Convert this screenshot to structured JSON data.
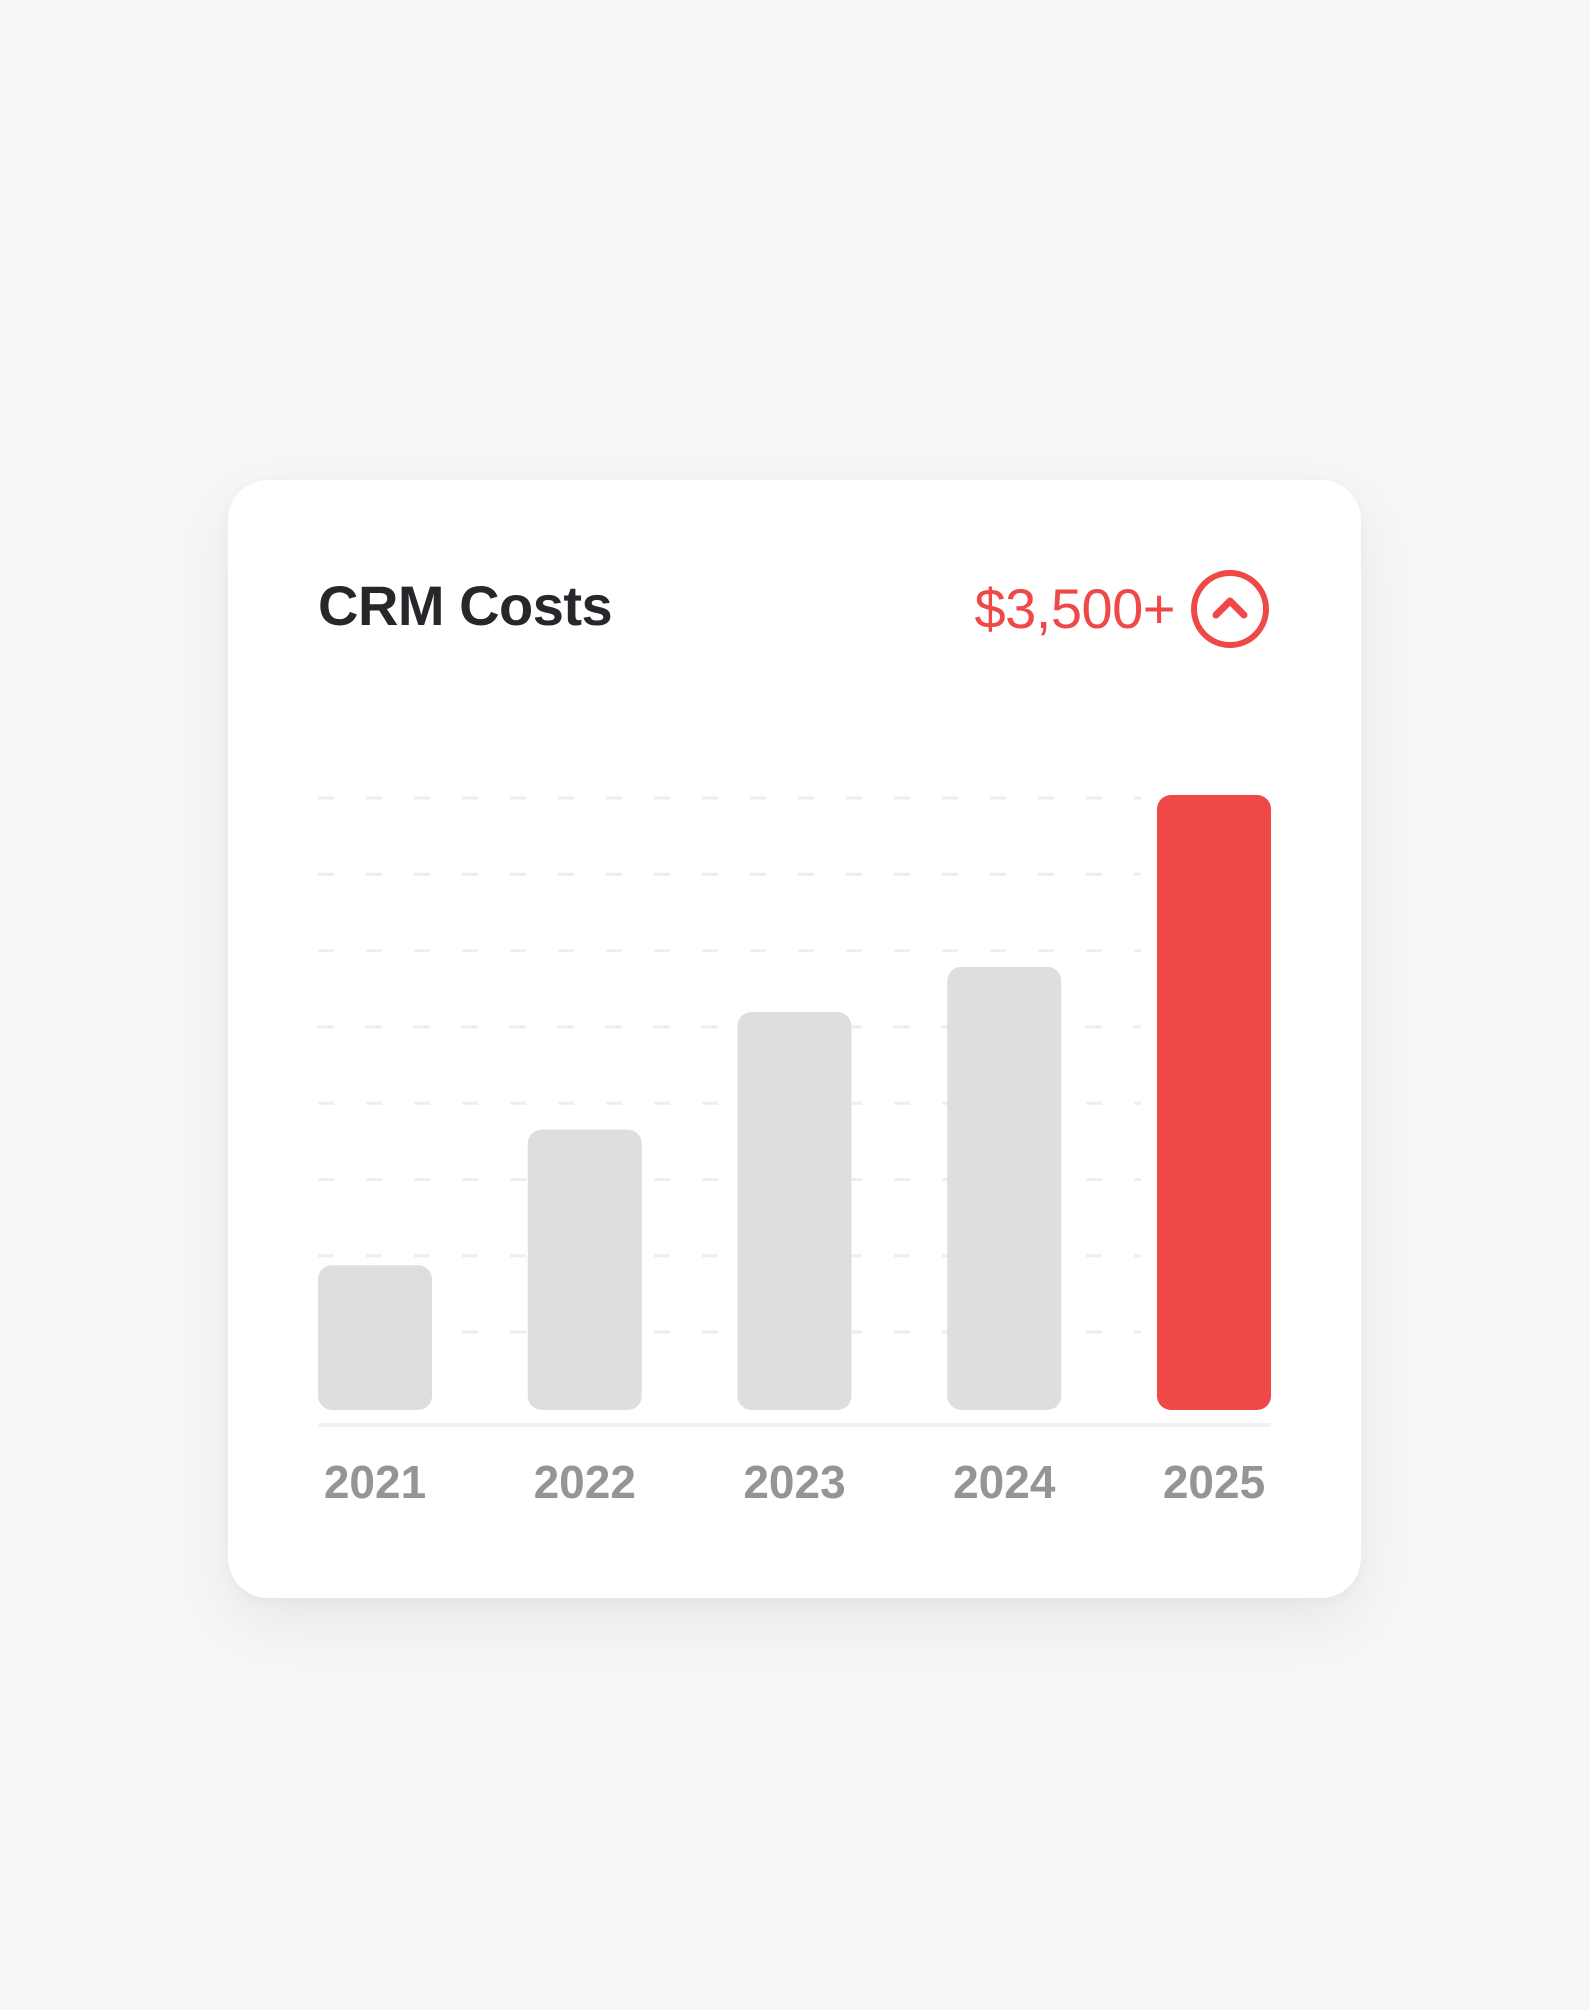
{
  "card": {
    "title": "CRM Costs",
    "total": "$3,500+",
    "trend_icon": "chevron-up-circle-icon"
  },
  "colors": {
    "background": "#f6f6f6",
    "card": "#ffffff",
    "title": "#26272b",
    "accent": "#f04747",
    "bar_default": "#dedede",
    "tick_label": "#969494",
    "gridline": "#eeeeee"
  },
  "chart_data": {
    "type": "bar",
    "title": "CRM Costs",
    "categories": [
      "2021",
      "2022",
      "2023",
      "2024",
      "2025"
    ],
    "values": [
      800,
      1550,
      2200,
      2450,
      3400
    ],
    "highlight_index": 4,
    "ylim": [
      0,
      3400
    ],
    "grid": true,
    "y_axis_labels": false
  }
}
